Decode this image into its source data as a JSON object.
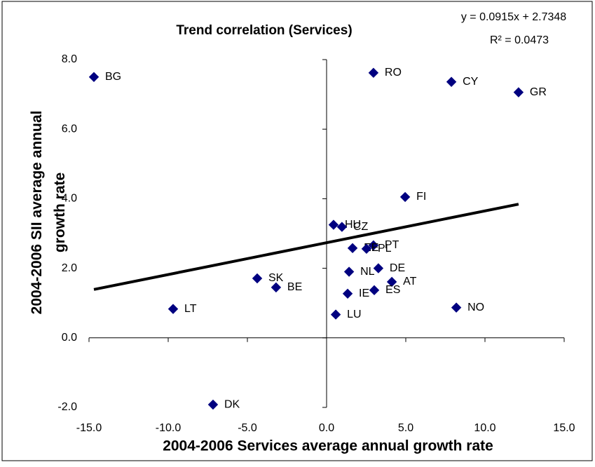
{
  "chart_data": {
    "type": "scatter",
    "title": "Trend correlation (Services)",
    "x_label": "2004-2006 Services average annual growth rate",
    "y_label": "2004-2006 SII average annual growth rate",
    "trendline": {
      "slope": 0.0915,
      "intercept": 2.7348,
      "equation": "y = 0.0915x + 2.7348",
      "r_squared": "R² = 0.0473"
    },
    "color": "#000080",
    "labels": [
      "BG",
      "RO",
      "CY",
      "GR",
      "FI",
      "HU",
      "CZ",
      "PT",
      "EE",
      "PL",
      "NL",
      "DE",
      "AT",
      "ES",
      "IE",
      "LU",
      "NO",
      "SK",
      "BE",
      "LT",
      "DK"
    ],
    "x": [
      -14.69,
      2.96,
      7.88,
      12.12,
      4.96,
      0.44,
      0.97,
      2.96,
      1.64,
      2.52,
      1.42,
      3.27,
      4.12,
      3.01,
      1.33,
      0.58,
      8.19,
      -4.38,
      -3.19,
      -9.69,
      -7.17
    ],
    "values": [
      7.5,
      7.62,
      7.36,
      7.06,
      4.05,
      3.25,
      3.19,
      2.66,
      2.58,
      2.56,
      1.9,
      2.0,
      1.61,
      1.37,
      1.27,
      0.67,
      0.87,
      1.71,
      1.45,
      0.83,
      -1.92
    ],
    "xlim": [
      -15,
      15
    ],
    "ylim": [
      -2,
      8
    ],
    "xticks": [
      {
        "value": -15,
        "label": "-15.0"
      },
      {
        "value": -10,
        "label": "-10.0"
      },
      {
        "value": -5,
        "label": "-5.0"
      },
      {
        "value": 0,
        "label": "0.0"
      },
      {
        "value": 5,
        "label": "5.0"
      },
      {
        "value": 10,
        "label": "10.0"
      },
      {
        "value": 15,
        "label": "15.0"
      }
    ],
    "yticks": [
      {
        "value": -2,
        "label": "-2.0"
      },
      {
        "value": 0,
        "label": "0.0"
      },
      {
        "value": 2,
        "label": "2.0"
      },
      {
        "value": 4,
        "label": "4.0"
      },
      {
        "value": 6,
        "label": "6.0"
      },
      {
        "value": 8,
        "label": "8.0"
      }
    ]
  }
}
